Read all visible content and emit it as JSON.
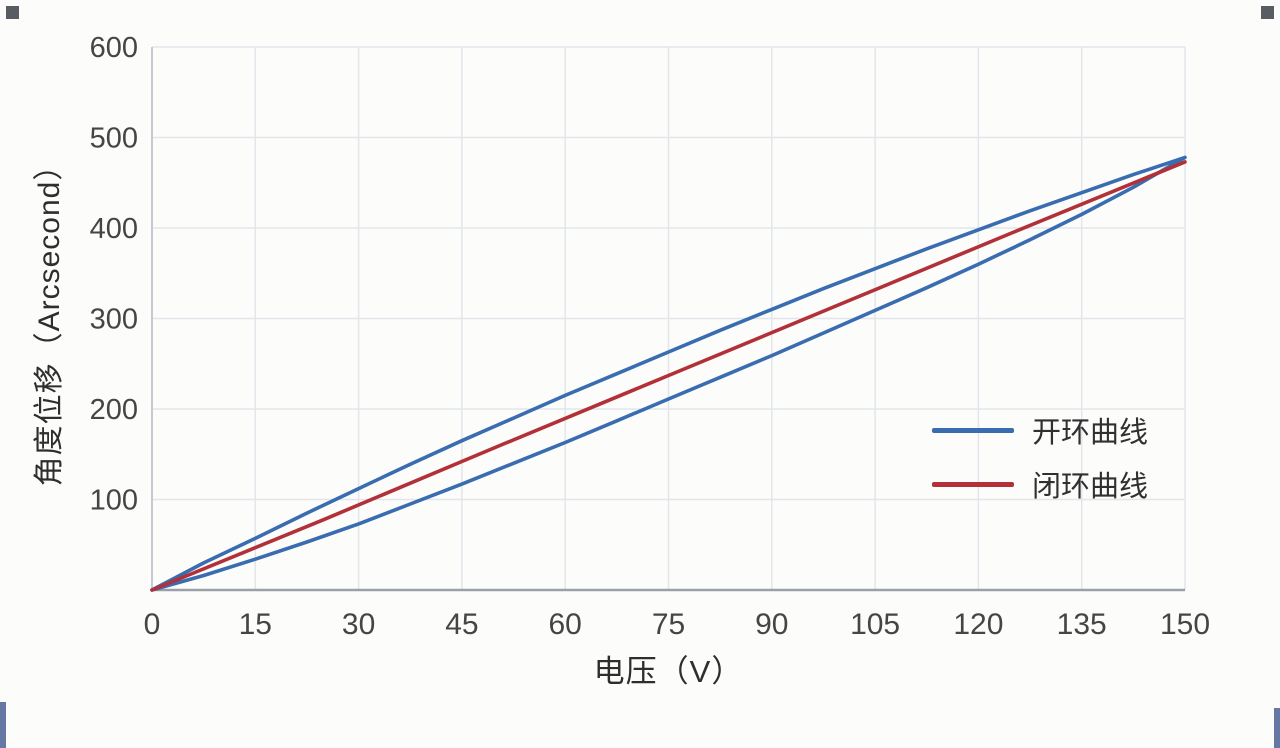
{
  "page": {
    "background": "#fcfcfb"
  },
  "chart_data": {
    "type": "line",
    "title": "",
    "xlabel": "电压（V）",
    "ylabel": "角度位移（Arcsecond）",
    "xlim": [
      0,
      150
    ],
    "ylim": [
      0,
      600
    ],
    "xticks": [
      0,
      15,
      30,
      45,
      60,
      75,
      90,
      105,
      120,
      135,
      150
    ],
    "yticks": [
      100,
      200,
      300,
      400,
      500,
      600
    ],
    "grid": true,
    "legend": {
      "position": "middle-right",
      "entries": [
        "开环曲线",
        "闭环曲线"
      ]
    },
    "series": [
      {
        "name": "开环曲线",
        "color": "#3a6cb0",
        "note": "hysteresis loop: ascending branch then descending branch",
        "x": [
          0,
          7.5,
          15,
          22.5,
          30,
          37.5,
          45,
          52.5,
          60,
          67.5,
          75,
          82.5,
          90,
          97.5,
          105,
          112.5,
          120,
          127.5,
          135,
          142.5,
          150,
          142.5,
          135,
          127.5,
          120,
          112.5,
          105,
          97.5,
          90,
          82.5,
          75,
          67.5,
          60,
          52.5,
          45,
          37.5,
          30,
          22.5,
          15,
          7.5,
          0
        ],
        "y": [
          0,
          30,
          57,
          85,
          112,
          139,
          165,
          190,
          215,
          239,
          263,
          287,
          310,
          333,
          355,
          377,
          398,
          419,
          439,
          459,
          478,
          445,
          415,
          387,
          360,
          334,
          309,
          284,
          259,
          235,
          211,
          187,
          163,
          140,
          117,
          95,
          73,
          53,
          34,
          16,
          0
        ]
      },
      {
        "name": "闭环曲线",
        "color": "#b23038",
        "x": [
          0,
          25,
          50,
          75,
          100,
          125,
          150
        ],
        "y": [
          0,
          78,
          158,
          237,
          316,
          395,
          473
        ]
      }
    ]
  }
}
